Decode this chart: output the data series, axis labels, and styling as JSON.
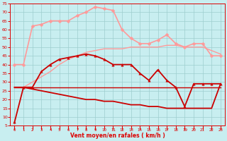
{
  "title": "",
  "xlabel": "Vent moyen/en rafales ( km/h )",
  "ylabel": "",
  "bg_color": "#c8eef0",
  "grid_color": "#9ecece",
  "text_color": "#dd0000",
  "xlim": [
    -0.5,
    23.5
  ],
  "ylim": [
    5,
    75
  ],
  "yticks": [
    5,
    10,
    15,
    20,
    25,
    30,
    35,
    40,
    45,
    50,
    55,
    60,
    65,
    70,
    75
  ],
  "xticks": [
    0,
    1,
    2,
    3,
    4,
    5,
    6,
    7,
    8,
    9,
    10,
    11,
    12,
    13,
    14,
    15,
    16,
    17,
    18,
    19,
    20,
    21,
    22,
    23
  ],
  "series": [
    {
      "name": "rafales_light",
      "x": [
        0,
        1,
        2,
        3,
        4,
        5,
        6,
        7,
        8,
        9,
        10,
        11,
        12,
        13,
        14,
        15,
        16,
        17,
        18,
        19,
        20,
        21,
        22,
        23
      ],
      "y": [
        40,
        40,
        62,
        63,
        65,
        65,
        65,
        68,
        70,
        73,
        72,
        71,
        60,
        55,
        52,
        52,
        54,
        57,
        52,
        50,
        52,
        52,
        45,
        45
      ],
      "color": "#ff9999",
      "lw": 1.2,
      "marker": "D",
      "ms": 2.5
    },
    {
      "name": "moyen_light",
      "x": [
        0,
        1,
        2,
        3,
        4,
        5,
        6,
        7,
        8,
        9,
        10,
        11,
        12,
        13,
        14,
        15,
        16,
        17,
        18,
        19,
        20,
        21,
        22,
        23
      ],
      "y": [
        27,
        27,
        30,
        33,
        36,
        40,
        43,
        45,
        47,
        48,
        49,
        49,
        49,
        50,
        50,
        50,
        50,
        51,
        51,
        50,
        50,
        50,
        48,
        46
      ],
      "color": "#ff9999",
      "lw": 1.0,
      "marker": null,
      "ms": 0
    },
    {
      "name": "moyen_red_up",
      "x": [
        0,
        1,
        2,
        3,
        4,
        5,
        6,
        7,
        8,
        9,
        10,
        11,
        12,
        13,
        14,
        15,
        16,
        17,
        18,
        19,
        20,
        21,
        22,
        23
      ],
      "y": [
        7,
        27,
        27,
        36,
        40,
        43,
        44,
        45,
        46,
        45,
        43,
        40,
        40,
        40,
        35,
        31,
        37,
        31,
        27,
        16,
        29,
        29,
        29,
        29
      ],
      "color": "#cc0000",
      "lw": 1.3,
      "marker": "^",
      "ms": 2.5
    },
    {
      "name": "flat_line",
      "x": [
        0,
        1,
        2,
        3,
        4,
        5,
        6,
        7,
        8,
        9,
        10,
        11,
        12,
        13,
        14,
        15,
        16,
        17,
        18,
        19,
        20,
        21,
        22,
        23
      ],
      "y": [
        27,
        27,
        27,
        27,
        27,
        27,
        27,
        27,
        27,
        27,
        27,
        27,
        27,
        27,
        27,
        27,
        27,
        27,
        27,
        27,
        27,
        27,
        27,
        27
      ],
      "color": "#cc0000",
      "lw": 1.0,
      "marker": null,
      "ms": 0
    },
    {
      "name": "decline_line",
      "x": [
        0,
        1,
        2,
        3,
        4,
        5,
        6,
        7,
        8,
        9,
        10,
        11,
        12,
        13,
        14,
        15,
        16,
        17,
        18,
        19,
        20,
        21,
        22,
        23
      ],
      "y": [
        27,
        27,
        26,
        25,
        24,
        23,
        22,
        21,
        20,
        20,
        19,
        19,
        18,
        17,
        17,
        16,
        16,
        15,
        15,
        15,
        15,
        15,
        15,
        29
      ],
      "color": "#cc0000",
      "lw": 1.3,
      "marker": null,
      "ms": 0
    }
  ]
}
